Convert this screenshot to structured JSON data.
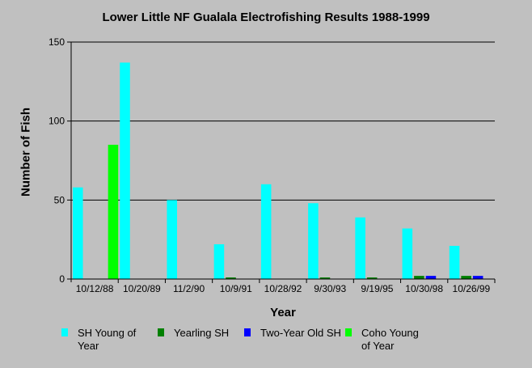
{
  "chart_data": {
    "type": "bar",
    "title": "Lower Little NF Gualala Electrofishing Results 1988-1999",
    "xlabel": "Year",
    "ylabel": "Number of Fish",
    "ylim": [
      0,
      150
    ],
    "yticks": [
      0,
      50,
      100,
      150
    ],
    "grid": true,
    "legend_position": "bottom",
    "categories": [
      "10/12/88",
      "10/20/89",
      "11/2/90",
      "10/9/91",
      "10/28/92",
      "9/30/93",
      "9/19/95",
      "10/30/98",
      "10/26/99"
    ],
    "series": [
      {
        "name": "SH Young of Year",
        "color": "#00ffff",
        "values": [
          58,
          137,
          50,
          22,
          60,
          48,
          39,
          32,
          21
        ]
      },
      {
        "name": "Yearling SH",
        "color": "#008000",
        "values": [
          0,
          0,
          0,
          1,
          0,
          1,
          1,
          2,
          2
        ]
      },
      {
        "name": "Two-Year Old SH",
        "color": "#0000ff",
        "values": [
          0,
          0,
          0,
          0,
          0,
          0,
          0,
          2,
          2
        ]
      },
      {
        "name": "Coho Young of Year",
        "color": "#00ff00",
        "values": [
          85,
          0,
          0,
          0,
          0,
          0,
          0,
          0,
          0
        ]
      }
    ]
  }
}
